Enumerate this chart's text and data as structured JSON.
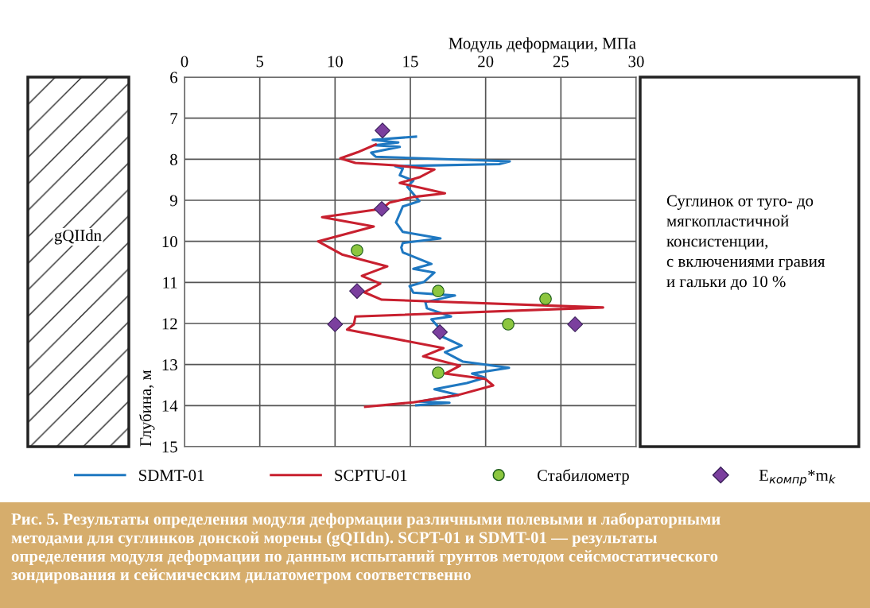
{
  "chart_data": {
    "type": "line",
    "xlabel": "Модуль деформации, МПа",
    "ylabel": "Глубина, м",
    "xlim": [
      0,
      30
    ],
    "xticks": [
      0,
      5,
      10,
      15,
      20,
      25,
      30
    ],
    "ylim": [
      15,
      6
    ],
    "yticks": [
      6,
      7,
      8,
      9,
      10,
      11,
      12,
      13,
      14,
      15
    ],
    "grid": true,
    "legend": "bottom",
    "line_style": "solid",
    "series": [
      {
        "name": "SDMT-01",
        "color": "#1f78c1",
        "marker": "none",
        "x": [
          15.37,
          12.5,
          14.2,
          12.6,
          14.3,
          12.4,
          12.7,
          21.6,
          20.9,
          14.0,
          14.5,
          14.3,
          15.2,
          14.8,
          15.6,
          14.5,
          14.05,
          14.5,
          17.0,
          14.5,
          14.4,
          14.5,
          16.4,
          15.2,
          16.6,
          15.9,
          14.95,
          15.2,
          17.96,
          16.0,
          16.1,
          17.7,
          16.4,
          16.8,
          16.96,
          17.0,
          18.4,
          17.3,
          18.5,
          21.55,
          19.1,
          19.97,
          18.75,
          16.6,
          18.2,
          15.6,
          17.6,
          15.4
        ],
        "values": [
          7.45,
          7.53,
          7.59,
          7.66,
          7.7,
          7.84,
          7.94,
          8.05,
          8.12,
          8.17,
          8.23,
          8.39,
          8.52,
          8.67,
          9.02,
          9.15,
          9.54,
          9.77,
          9.93,
          10.04,
          10.15,
          10.27,
          10.55,
          10.67,
          10.76,
          10.99,
          11.09,
          11.25,
          11.32,
          11.48,
          11.63,
          11.83,
          11.9,
          12.06,
          12.19,
          12.3,
          12.54,
          12.7,
          12.93,
          13.08,
          13.22,
          13.32,
          13.45,
          13.6,
          13.74,
          13.9,
          13.93,
          13.99
        ]
      },
      {
        "name": "SCPTU-01",
        "color": "#c8202f",
        "marker": "none",
        "x": [
          12.7,
          11.5,
          10.35,
          11.35,
          14.0,
          16.6,
          15.6,
          14.3,
          17.3,
          15.2,
          13.6,
          13.1,
          9.14,
          12.57,
          8.87,
          10.46,
          13.47,
          11.78,
          13.0,
          11.94,
          13.1,
          27.8,
          11.35,
          11.25,
          10.8,
          17.2,
          15.85,
          18.3,
          17.3,
          19.97,
          20.5,
          18.2,
          15.2,
          12.0
        ],
        "values": [
          7.64,
          7.83,
          7.98,
          8.09,
          8.15,
          8.25,
          8.44,
          8.58,
          8.83,
          8.92,
          9.06,
          9.21,
          9.41,
          9.64,
          10.0,
          10.32,
          10.61,
          10.84,
          11.03,
          11.24,
          11.42,
          11.61,
          11.83,
          12.02,
          12.15,
          12.6,
          12.8,
          13.03,
          13.22,
          13.35,
          13.51,
          13.74,
          13.92,
          14.03
        ]
      },
      {
        "name": "Стабилометр",
        "type": "scatter",
        "color": "#8cc63f",
        "marker": "circle",
        "x": [
          11.46,
          16.85,
          23.98,
          21.5,
          16.85
        ],
        "values": [
          10.22,
          11.21,
          11.4,
          12.02,
          13.2
        ]
      },
      {
        "name": "E$_{компр}$*m$_{k}$",
        "type": "scatter",
        "color": "#7b3f9e",
        "marker": "diamond",
        "x": [
          13.15,
          13.1,
          11.46,
          10.0,
          16.96,
          25.94
        ],
        "values": [
          7.3,
          9.21,
          11.21,
          12.02,
          12.21,
          12.02
        ]
      }
    ],
    "annotations": [
      "gQIIdn",
      "Суглинок от туго- до\nмягкопластичной\nконсистенции,\nс включениями гравия\nи гальки до 10 %",
      "Рис. 5. Результаты определения модуля деформации различными полевыми и лабораторными\nметодами для суглинков донской морены (gQIIdn). SCPT-01 и SDMT-01 — результаты\nопределения модуля деформации по данным испытаний грунтов методом сейсмостатического\nзондирования и сейсмическим дилатометром соответственно"
    ]
  }
}
